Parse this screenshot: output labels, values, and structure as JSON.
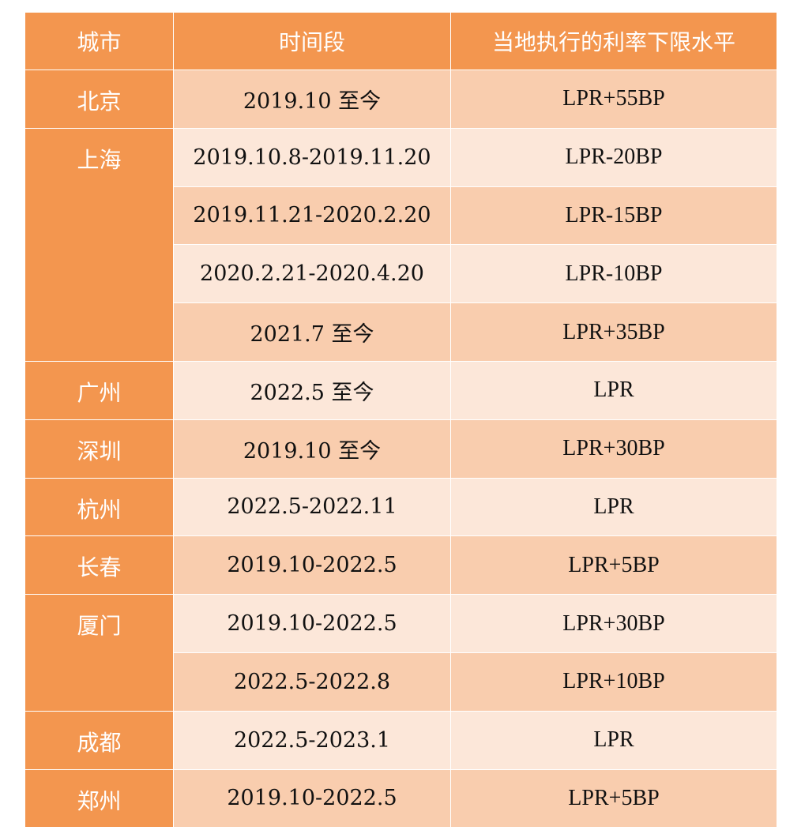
{
  "headers": [
    "城市",
    "时间段",
    "当地执行的利率下限水平"
  ],
  "colors": {
    "header": "#F3964F",
    "row_dark": "#F9CDAE",
    "row_light": "#FCE7D9"
  },
  "groups": [
    {
      "city": "北京",
      "rows": [
        {
          "period": "2019.10 至今",
          "rate": "LPR+55BP"
        }
      ]
    },
    {
      "city": "上海",
      "rows": [
        {
          "period": "2019.10.8-2019.11.20",
          "rate": "LPR-20BP"
        },
        {
          "period": "2019.11.21-2020.2.20",
          "rate": "LPR-15BP"
        },
        {
          "period": "2020.2.21-2020.4.20",
          "rate": "LPR-10BP"
        },
        {
          "period": "2021.7 至今",
          "rate": "LPR+35BP"
        }
      ]
    },
    {
      "city": "广州",
      "rows": [
        {
          "period": "2022.5 至今",
          "rate": "LPR"
        }
      ]
    },
    {
      "city": "深圳",
      "rows": [
        {
          "period": "2019.10 至今",
          "rate": "LPR+30BP"
        }
      ]
    },
    {
      "city": "杭州",
      "rows": [
        {
          "period": "2022.5-2022.11",
          "rate": "LPR"
        }
      ]
    },
    {
      "city": "长春",
      "rows": [
        {
          "period": "2019.10-2022.5",
          "rate": "LPR+5BP"
        }
      ]
    },
    {
      "city": "厦门",
      "rows": [
        {
          "period": "2019.10-2022.5",
          "rate": "LPR+30BP"
        },
        {
          "period": "2022.5-2022.8",
          "rate": "LPR+10BP"
        }
      ]
    },
    {
      "city": "成都",
      "rows": [
        {
          "period": "2022.5-2023.1",
          "rate": "LPR"
        }
      ]
    },
    {
      "city": "郑州",
      "rows": [
        {
          "period": "2019.10-2022.5",
          "rate": "LPR+5BP"
        }
      ]
    }
  ]
}
